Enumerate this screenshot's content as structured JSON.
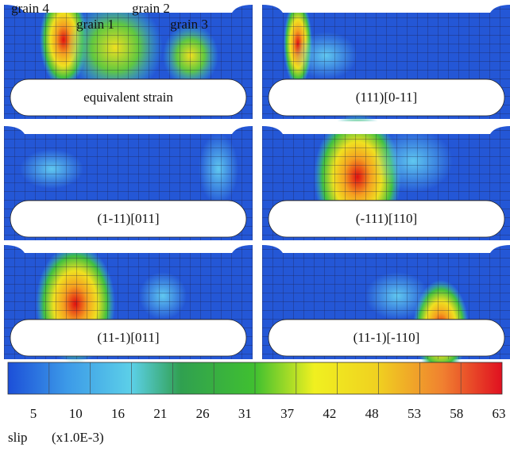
{
  "panels": [
    {
      "label": "equivalent strain"
    },
    {
      "label": "(111)[0-11]"
    },
    {
      "label": "(1-11)[011]"
    },
    {
      "label": "(-111)[110]"
    },
    {
      "label": "(11-1)[011]"
    },
    {
      "label": "(11-1)[-110]"
    }
  ],
  "grain_labels": [
    "grain 4",
    "grain 1",
    "grain 2",
    "grain 3"
  ],
  "colorbar": {
    "ticks": [
      5,
      10,
      16,
      21,
      26,
      31,
      37,
      42,
      48,
      53,
      58,
      63
    ]
  },
  "legend": {
    "name": "slip",
    "unit": "(x1.0E-3)"
  }
}
